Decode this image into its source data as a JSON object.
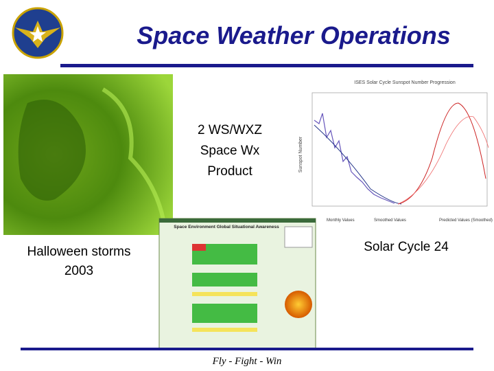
{
  "header": {
    "title": "Space Weather Operations"
  },
  "captions": {
    "product": [
      "2 WS/WXZ",
      "Space Wx",
      "Product"
    ],
    "left": [
      "Halloween storms",
      "2003"
    ],
    "right": "Solar Cycle 24"
  },
  "sunspot_chart": {
    "title": "ISES Solar Cycle Sunspot Number Progression",
    "y_label": "Sunspot Number",
    "legend": [
      "Monthly Values",
      "Smoothed Values",
      "Predicted Values (Smoothed)"
    ]
  },
  "product_image": {
    "title": "Space Environment Global Situational Awareness"
  },
  "footer": {
    "motto": "Fly - Fight - Win"
  }
}
